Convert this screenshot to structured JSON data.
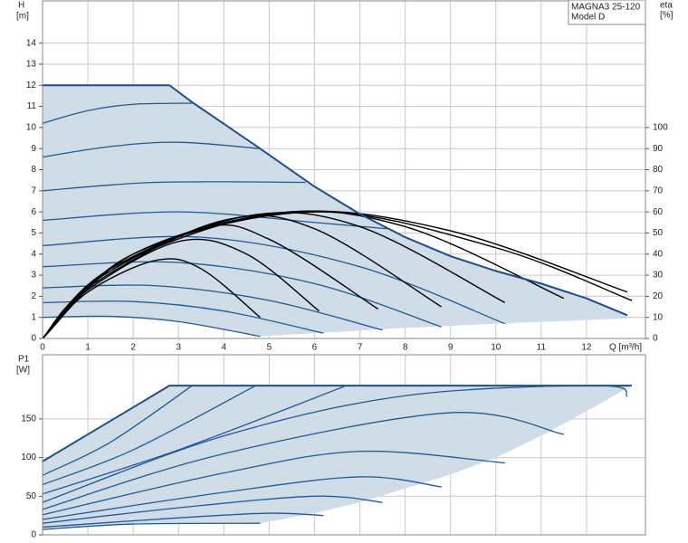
{
  "chart_data": [
    {
      "type": "line",
      "legend_text": [
        "MAGNA3 25-120",
        "Model D"
      ],
      "xlabel": "Q [m³/h]",
      "ylabel": "H",
      "ylabel_unit": "[m]",
      "y2label": "eta",
      "y2label_unit": "[%]",
      "xlim": [
        0,
        13.3
      ],
      "xticks": [
        0,
        1,
        2,
        3,
        4,
        5,
        6,
        7,
        8,
        9,
        10,
        11,
        12
      ],
      "ylim": [
        0,
        16
      ],
      "yticks": [
        0,
        1,
        2,
        3,
        4,
        5,
        6,
        7,
        8,
        9,
        10,
        11,
        12,
        13,
        14
      ],
      "y2lim": [
        0,
        160
      ],
      "y2ticks": [
        0,
        10,
        20,
        30,
        40,
        50,
        60,
        70,
        80,
        90,
        100
      ],
      "grid": true,
      "region": {
        "color": "#d0dce7",
        "x": [
          0,
          2.8,
          3.3,
          4.8,
          6,
          7,
          8,
          9,
          10,
          11,
          12,
          12.9,
          12.9,
          10,
          8,
          6,
          4.8,
          3,
          1.5,
          0
        ],
        "values": [
          12,
          12,
          11.2,
          9.0,
          7.2,
          5.9,
          4.8,
          3.9,
          3.2,
          2.6,
          1.9,
          1.1,
          0.95,
          0.7,
          0.5,
          0.25,
          0.1,
          0.8,
          1.05,
          1.0
        ]
      },
      "envelope": {
        "color": "#1f4e8c",
        "x": [
          0,
          2.8,
          3.3,
          4.8,
          6,
          7,
          8,
          9,
          10,
          11,
          12,
          12.9
        ],
        "values": [
          12,
          12,
          11.2,
          9.0,
          7.2,
          5.9,
          4.8,
          3.9,
          3.2,
          2.6,
          1.9,
          1.1
        ]
      },
      "series": [
        {
          "color": "#1f5b99",
          "x": [
            0,
            1.5,
            3,
            4.8
          ],
          "values": [
            1.0,
            1.05,
            0.8,
            0.1
          ]
        },
        {
          "color": "#1f5b99",
          "x": [
            0,
            2,
            4,
            6.2
          ],
          "values": [
            1.7,
            1.75,
            1.3,
            0.25
          ]
        },
        {
          "color": "#1f5b99",
          "x": [
            0,
            2.5,
            5,
            7.5
          ],
          "values": [
            2.4,
            2.5,
            1.8,
            0.4
          ]
        },
        {
          "color": "#1f5b99",
          "x": [
            0,
            3,
            6,
            8.8
          ],
          "values": [
            3.4,
            3.6,
            2.6,
            0.55
          ]
        },
        {
          "color": "#1f5b99",
          "x": [
            0,
            3.5,
            7,
            10.2
          ],
          "values": [
            4.4,
            4.8,
            3.4,
            0.7
          ]
        },
        {
          "color": "#1f5b99",
          "x": [
            0,
            3,
            6,
            7.6
          ],
          "values": [
            5.6,
            6.0,
            5.5,
            5.2
          ]
        },
        {
          "color": "#1f5b99",
          "x": [
            0,
            2.5,
            5.8
          ],
          "values": [
            7.0,
            7.4,
            7.4
          ]
        },
        {
          "color": "#1f5b99",
          "x": [
            0,
            1.5,
            3,
            4.8
          ],
          "values": [
            8.6,
            9.1,
            9.3,
            9.0
          ]
        },
        {
          "color": "#1f5b99",
          "x": [
            0,
            1,
            2,
            3.3
          ],
          "values": [
            10.2,
            10.8,
            11.1,
            11.15
          ]
        },
        {
          "color": "#000000",
          "axis": "y2",
          "x": [
            0,
            1,
            2.5,
            3.5,
            4.8
          ],
          "values": [
            0,
            22,
            37,
            33,
            10
          ]
        },
        {
          "color": "#000000",
          "axis": "y2",
          "x": [
            0,
            1,
            3,
            4.5,
            6.1
          ],
          "values": [
            0,
            23,
            46,
            40,
            13
          ]
        },
        {
          "color": "#000000",
          "axis": "y2",
          "x": [
            0,
            1,
            3.5,
            5,
            7.4
          ],
          "values": [
            0,
            24,
            52,
            47,
            14
          ]
        },
        {
          "color": "#000000",
          "axis": "y2",
          "x": [
            0,
            1.2,
            4,
            6,
            8.8
          ],
          "values": [
            0,
            28,
            56,
            52,
            15
          ]
        },
        {
          "color": "#000000",
          "axis": "y2",
          "x": [
            0,
            1.5,
            4.5,
            7,
            10.2
          ],
          "values": [
            0,
            33,
            58,
            53,
            17
          ]
        },
        {
          "color": "#000000",
          "axis": "y2",
          "x": [
            0,
            1.5,
            5,
            8,
            11.5
          ],
          "values": [
            0,
            33,
            59,
            53,
            19
          ]
        },
        {
          "color": "#000000",
          "axis": "y2",
          "x": [
            0,
            2,
            5.5,
            9,
            12.9
          ],
          "values": [
            0,
            40,
            60,
            51,
            22
          ]
        },
        {
          "color": "#000000",
          "axis": "y2",
          "x": [
            0,
            2,
            6,
            10,
            13
          ],
          "values": [
            0,
            40,
            60,
            43,
            18
          ]
        }
      ]
    },
    {
      "type": "line",
      "ylabel": "P1",
      "ylabel_unit": "[W]",
      "xlim": [
        0,
        13.3
      ],
      "ylim": [
        0,
        233
      ],
      "yticks": [
        0,
        50,
        100,
        150
      ],
      "grid": true,
      "region": {
        "color": "#d0dce7",
        "x": [
          0,
          2.8,
          13,
          12,
          11,
          10,
          9,
          8,
          7,
          6,
          4.8,
          2,
          0
        ],
        "values": [
          95,
          193,
          193,
          160,
          128,
          100,
          78,
          60,
          42,
          28,
          15,
          14,
          7
        ]
      },
      "envelope": {
        "color": "#1f4e8c",
        "x": [
          0,
          2.8,
          13
        ],
        "values": [
          95,
          193,
          193
        ]
      },
      "series": [
        {
          "color": "#1f5b99",
          "x": [
            0,
            1.5,
            3.3
          ],
          "values": [
            77,
            120,
            193
          ]
        },
        {
          "color": "#1f5b99",
          "x": [
            0,
            2,
            4.7
          ],
          "values": [
            65,
            110,
            193
          ]
        },
        {
          "color": "#1f5b99",
          "x": [
            0,
            3,
            6.7
          ],
          "values": [
            53,
            110,
            193
          ]
        },
        {
          "color": "#1f5b99",
          "x": [
            0,
            4,
            8,
            12.3,
            12.9
          ],
          "values": [
            42,
            128,
            180,
            193,
            179
          ]
        },
        {
          "color": "#1f5b99",
          "x": [
            0,
            4,
            9,
            11.5
          ],
          "values": [
            33,
            105,
            158,
            130
          ]
        },
        {
          "color": "#1f5b99",
          "x": [
            0,
            4,
            7,
            10.2
          ],
          "values": [
            26,
            80,
            108,
            93
          ]
        },
        {
          "color": "#1f5b99",
          "x": [
            0,
            4,
            7,
            8.8
          ],
          "values": [
            20,
            55,
            75,
            62
          ]
        },
        {
          "color": "#1f5b99",
          "x": [
            0,
            3,
            6,
            7.5
          ],
          "values": [
            15,
            35,
            50,
            42
          ]
        },
        {
          "color": "#1f5b99",
          "x": [
            0,
            3,
            5,
            6.2
          ],
          "values": [
            10,
            22,
            28,
            25
          ]
        },
        {
          "color": "#1f5b99",
          "x": [
            0,
            2,
            4.8
          ],
          "values": [
            7,
            14,
            15
          ]
        }
      ]
    }
  ]
}
